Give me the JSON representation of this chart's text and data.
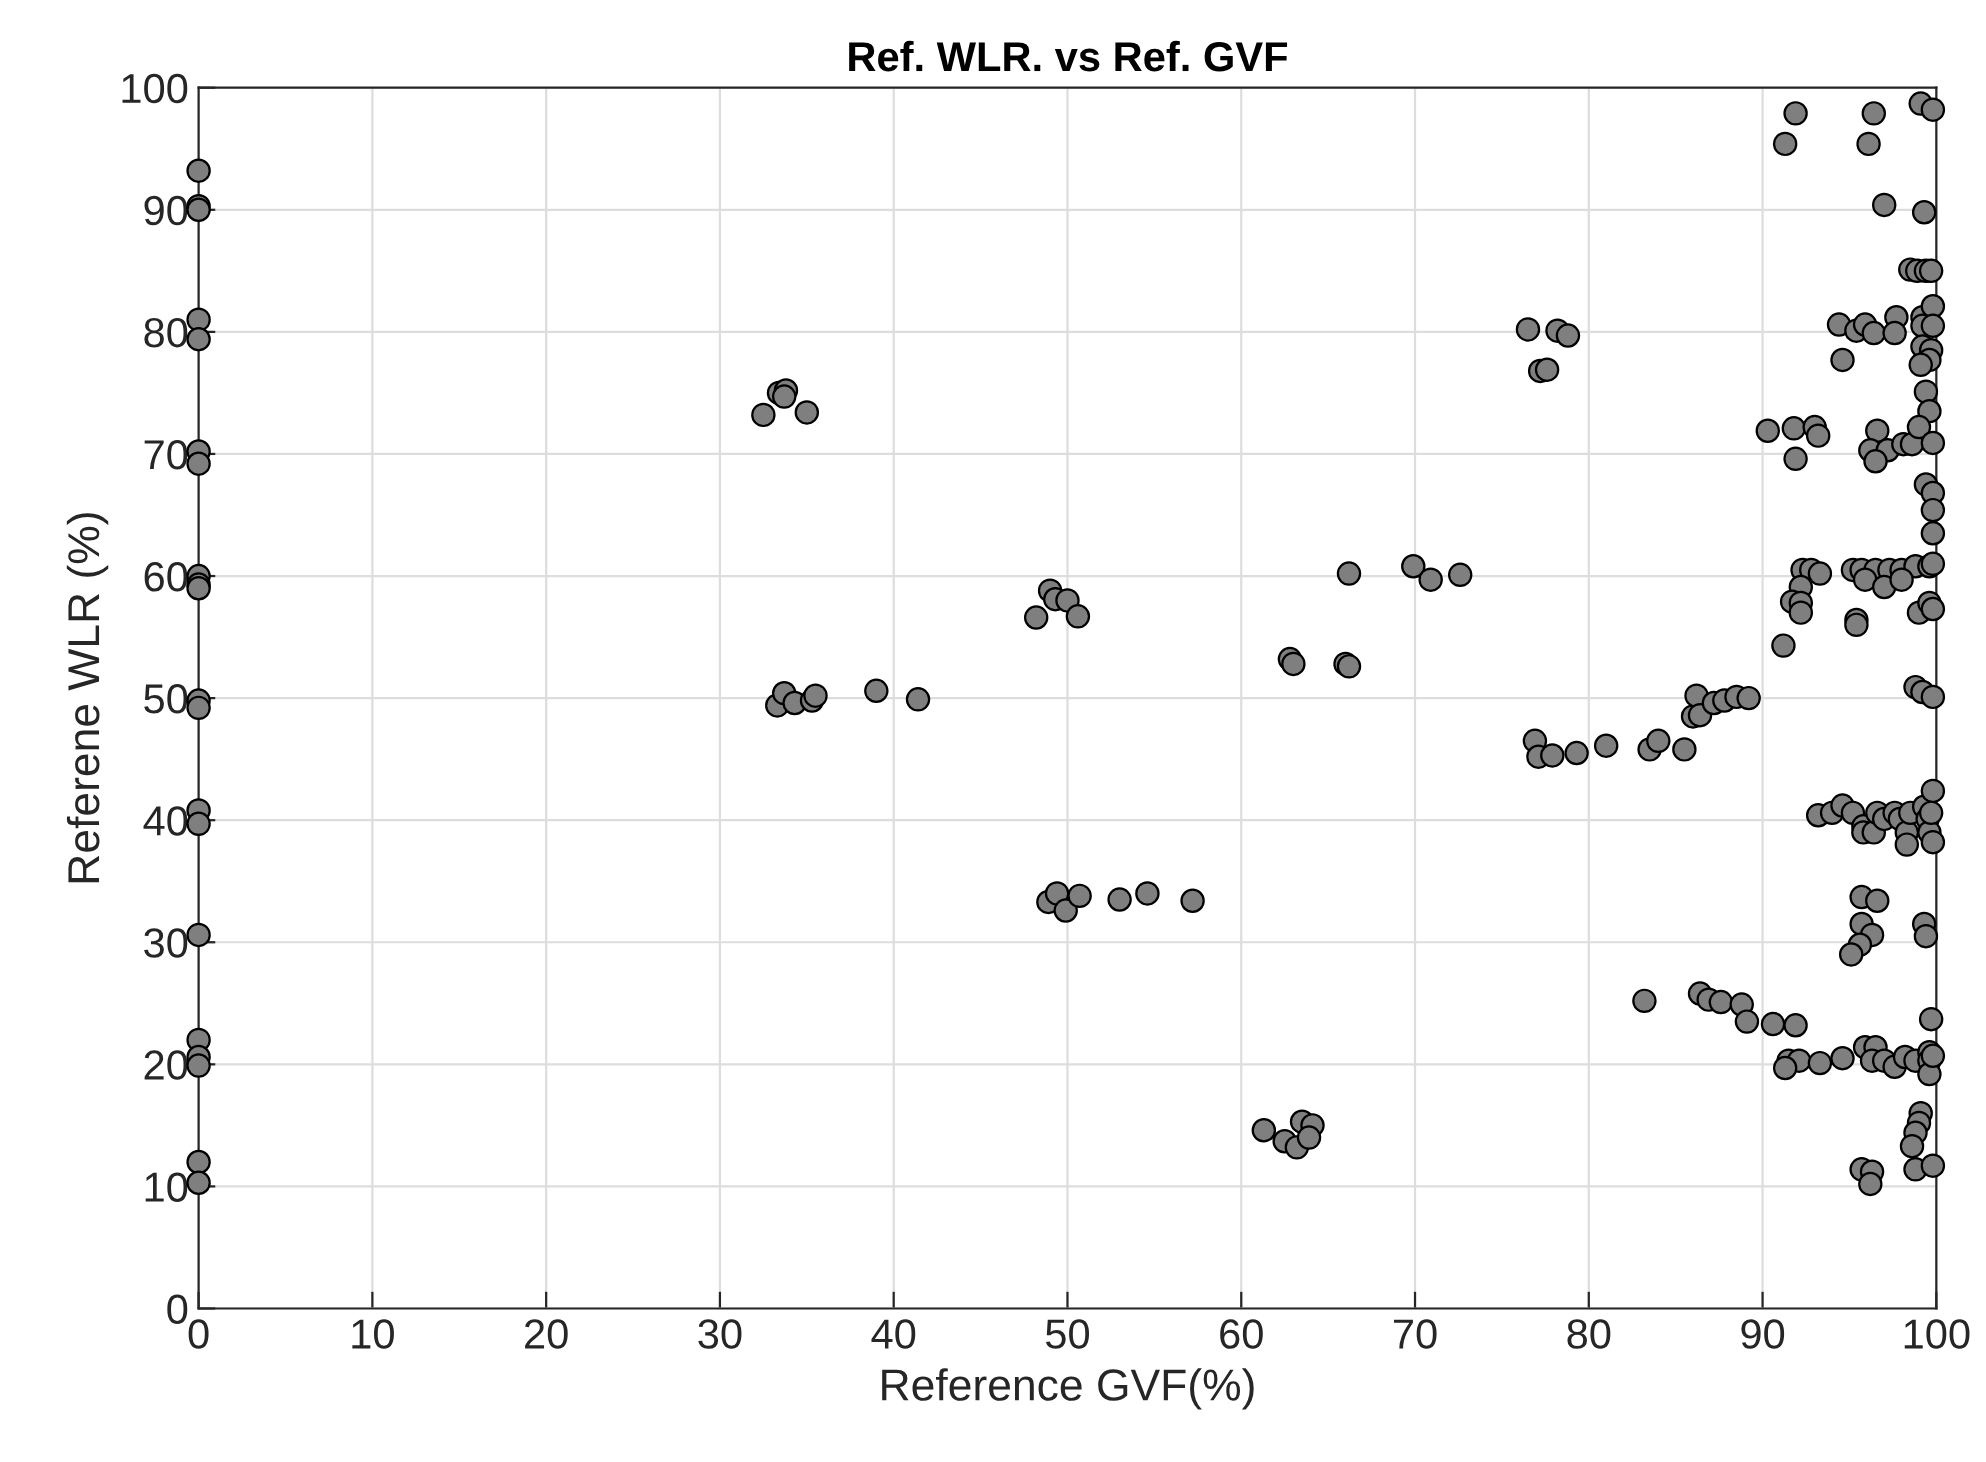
{
  "chart_data": {
    "type": "scatter",
    "title": "Ref. WLR. vs Ref. GVF",
    "xlabel": "Reference GVF(%)",
    "ylabel": "Referene WLR (%)",
    "xlim": [
      0,
      100
    ],
    "ylim": [
      0,
      100
    ],
    "xticks": [
      0,
      10,
      20,
      30,
      40,
      50,
      60,
      70,
      80,
      90,
      100
    ],
    "yticks": [
      0,
      10,
      20,
      30,
      40,
      50,
      60,
      70,
      80,
      90,
      100
    ],
    "grid": true,
    "marker": "circle",
    "series": [
      {
        "color": "#7f7f7f",
        "x": [
          0,
          0,
          0,
          0,
          0,
          0,
          0,
          0,
          0,
          0,
          0,
          0,
          0,
          0,
          0,
          0,
          0,
          0,
          0,
          0,
          32.5,
          33.4,
          33.8,
          33.7,
          35,
          33.3,
          33.7,
          34.3,
          35.3,
          35.5,
          39,
          41.4,
          48.2,
          49,
          49.3,
          50,
          50.6,
          48.9,
          49.4,
          49.9,
          50.7,
          53,
          54.6,
          57.2,
          61.3,
          62.5,
          63.2,
          63.5,
          64.1,
          63.9,
          62.8,
          63,
          66,
          66.2,
          66.2,
          69.9,
          70.9,
          72.6,
          76.5,
          77.2,
          77.6,
          78.2,
          78.8,
          76.9,
          77.1,
          77.9,
          79.3,
          81,
          83.5,
          84,
          85.5,
          86,
          86.2,
          86.4,
          87.2,
          87.8,
          88.5,
          89.2,
          83.2,
          86.4,
          86.9,
          87.6,
          88.8,
          89.1,
          90.6,
          91.9,
          91.9,
          96.4,
          99.1,
          99.8,
          91.3,
          96.1,
          97,
          99.3,
          98.5,
          98.9,
          99.4,
          99.7,
          94.4,
          95.4,
          95.9,
          96.4,
          97.7,
          97.6,
          99.2,
          99.2,
          99.8,
          99.8,
          99.2,
          99.7,
          99.6,
          99.1,
          94.6,
          99.4,
          99.6,
          90.3,
          91.8,
          93,
          93.2,
          91.9,
          96.6,
          96.2,
          97.2,
          96.5,
          98.1,
          98.6,
          99,
          99.8,
          99.4,
          99.8,
          99.8,
          99.8,
          92.3,
          92.8,
          93.3,
          92.2,
          91.7,
          92.2,
          92.2,
          91.2,
          95.2,
          95.7,
          96.5,
          97.3,
          98,
          98.8,
          99.6,
          99.8,
          95.9,
          97,
          98,
          95.4,
          95.4,
          99,
          99.6,
          99.8,
          98.8,
          99.2,
          99.8,
          93.2,
          94,
          94.6,
          95.2,
          95.8,
          95.8,
          96.4,
          96.6,
          97,
          97.6,
          97.9,
          98.3,
          98.3,
          98.5,
          99.3,
          99.5,
          99.6,
          99.8,
          99.8,
          99.7,
          95.7,
          96.6,
          95.7,
          96.3,
          95.6,
          95.1,
          99.3,
          99.4,
          99.7,
          91.5,
          92.1,
          91.3,
          93.3,
          94.6,
          95.9,
          96.5,
          96.3,
          97,
          97.6,
          98.2,
          98.8,
          99.6,
          99.6,
          99.6,
          99.8,
          99.1,
          99,
          98.8,
          98.6,
          98.8,
          99.8,
          95.7,
          96.3,
          96.2
        ],
        "values": [
          93.2,
          90.3,
          90,
          81,
          79.4,
          70.2,
          69.2,
          60,
          59.3,
          59,
          49.8,
          49.2,
          40.8,
          39.7,
          30.6,
          22,
          20.6,
          19.9,
          12,
          10.3,
          73.2,
          75,
          75.2,
          74.7,
          73.4,
          49.4,
          50.4,
          49.6,
          49.8,
          50.2,
          50.6,
          49.9,
          56.6,
          58.8,
          58.1,
          58,
          56.7,
          33.3,
          34,
          32.6,
          33.8,
          33.5,
          34,
          33.4,
          14.6,
          13.7,
          13.2,
          15.3,
          15,
          14,
          53.2,
          52.8,
          52.8,
          52.6,
          60.2,
          60.8,
          59.7,
          60.1,
          80.2,
          76.8,
          76.9,
          80.1,
          79.7,
          46.5,
          45.2,
          45.3,
          45.5,
          46.1,
          45.8,
          46.5,
          45.8,
          48.5,
          50.2,
          48.6,
          49.6,
          49.8,
          50.1,
          50,
          25.2,
          25.8,
          25.3,
          25.1,
          24.9,
          23.5,
          23.3,
          23.2,
          97.9,
          97.9,
          98.7,
          98.2,
          95.4,
          95.4,
          90.4,
          89.8,
          85.1,
          85,
          85,
          85,
          80.6,
          80.1,
          80.6,
          79.9,
          81.2,
          79.9,
          81.2,
          80.5,
          82.1,
          80.5,
          78.8,
          78.5,
          77.7,
          77.3,
          77.7,
          75.1,
          73.5,
          71.9,
          72.1,
          72.2,
          71.5,
          69.6,
          71.9,
          70.3,
          70.3,
          69.4,
          70.8,
          70.8,
          72.2,
          70.9,
          67.5,
          66.8,
          65.4,
          63.5,
          60.5,
          60.5,
          60.2,
          59.1,
          57.9,
          57.8,
          57,
          54.3,
          60.5,
          60.5,
          60.5,
          60.5,
          60.5,
          60.8,
          60.8,
          61,
          59.7,
          59.1,
          59.7,
          56.4,
          56,
          57,
          57.8,
          57.3,
          50.9,
          50.5,
          50.1,
          40.4,
          40.6,
          41.2,
          40.6,
          39.5,
          39,
          39,
          40.6,
          40.1,
          40.6,
          40.1,
          39,
          38,
          40.6,
          41.1,
          40.1,
          39,
          38.2,
          42.4,
          40.6,
          33.7,
          33.4,
          31.5,
          30.6,
          29.8,
          29,
          31.5,
          30.5,
          23.7,
          20.3,
          20.3,
          19.7,
          20.1,
          20.5,
          21.4,
          21.4,
          20.3,
          20.3,
          19.8,
          20.6,
          20.3,
          21,
          20.3,
          19.2,
          20.7,
          16,
          15.2,
          14.4,
          13.3,
          11.4,
          11.7,
          11.4,
          11.2,
          10.2
        ]
      }
    ]
  }
}
